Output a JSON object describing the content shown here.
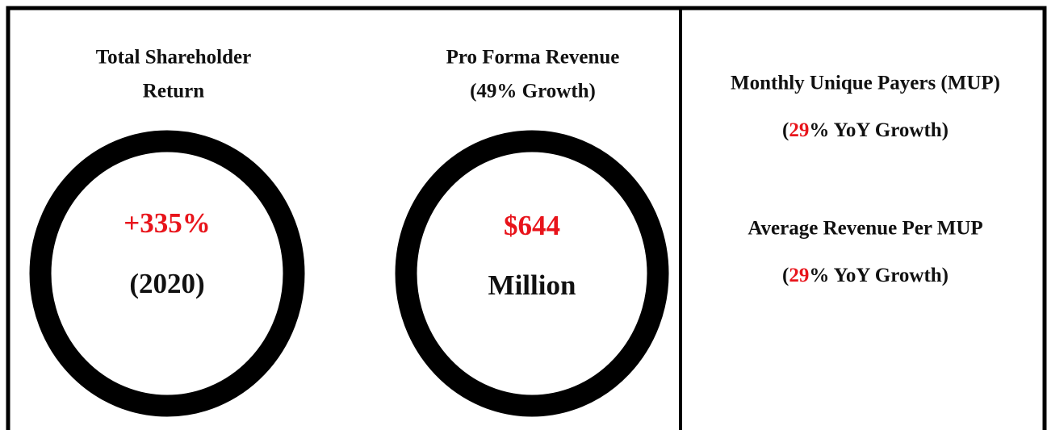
{
  "panels": [
    {
      "title": [
        "Total Shareholder",
        "Return"
      ],
      "value": "+335%",
      "caption": "(2020)"
    },
    {
      "title": [
        "Pro Forma Revenue",
        "(49% Growth)"
      ],
      "value": "$644",
      "caption": "Million"
    }
  ],
  "metrics": [
    {
      "label": "Monthly Unique Payers (MUP)",
      "growth": [
        "(",
        "29",
        "% YoY Growth)"
      ]
    },
    {
      "label": "Average Revenue Per MUP",
      "growth": [
        "(",
        "29",
        "% YoY Growth)"
      ]
    }
  ]
}
